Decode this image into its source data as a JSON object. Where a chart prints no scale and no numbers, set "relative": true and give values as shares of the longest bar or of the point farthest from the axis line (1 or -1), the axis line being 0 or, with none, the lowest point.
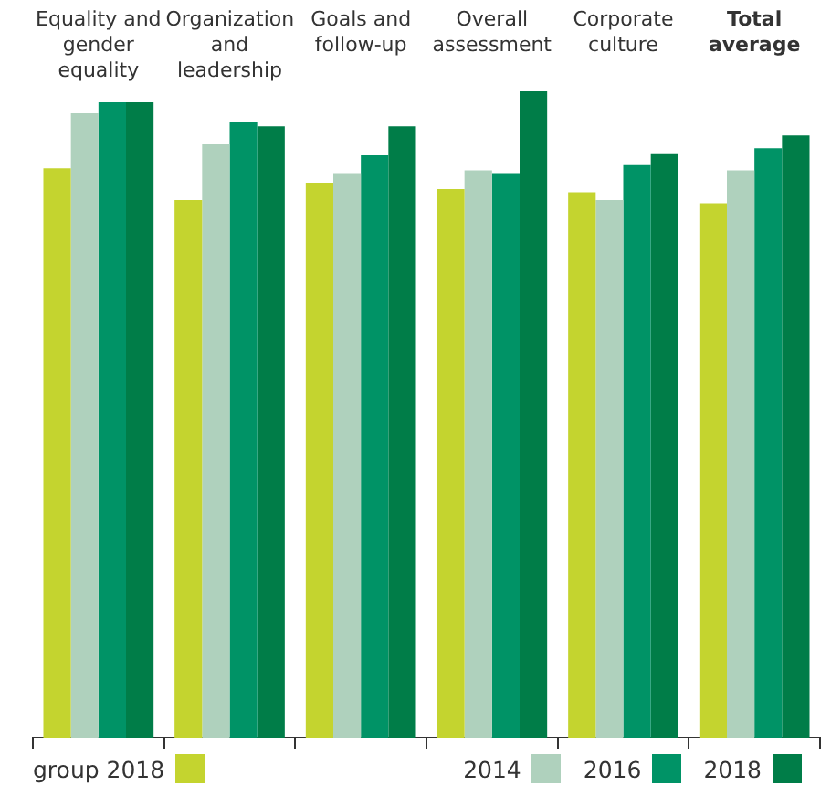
{
  "chart_data": {
    "type": "bar",
    "relative": true,
    "categories": [
      "Equality and gender equality",
      "Organization and leadership",
      "Goals and follow-up",
      "Overall assessment",
      "Corporate culture",
      "Total average"
    ],
    "series": [
      {
        "name": "group 2018",
        "color": "#c4d42f",
        "values": [
          0.881,
          0.832,
          0.858,
          0.849,
          0.844,
          0.827
        ]
      },
      {
        "name": "2014",
        "color": "#afd1bd",
        "values": [
          0.966,
          0.918,
          0.872,
          0.878,
          0.832,
          0.878
        ]
      },
      {
        "name": "2016",
        "color": "#009366",
        "values": [
          0.983,
          0.952,
          0.901,
          0.872,
          0.886,
          0.912
        ]
      },
      {
        "name": "2018",
        "color": "#007d48",
        "values": [
          0.983,
          0.946,
          0.946,
          1,
          0.903,
          0.932
        ]
      }
    ],
    "legend": "bottom",
    "grid": false
  }
}
